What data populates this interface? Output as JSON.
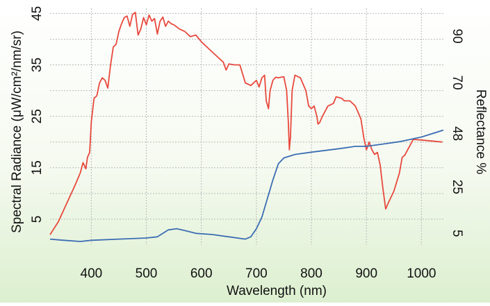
{
  "colors": {
    "radiance_series": "#e8483c",
    "reflectance_series": "#3b6db3",
    "grid": "#b8b8b8",
    "background_bottom": "#dcefcf"
  },
  "chart_data": {
    "type": "line",
    "xlabel": "Wavelength (nm)",
    "ylabel_left": "Spectral Radiance (μW/cm²/nm/sr)",
    "ylabel_right": "Reflectance %",
    "xlim": [
      325,
      1040
    ],
    "ylim_left": [
      0,
      46
    ],
    "ylim_right": [
      0,
      102
    ],
    "x_ticks": [
      400,
      500,
      600,
      700,
      800,
      900,
      1000
    ],
    "y_left_ticks": [
      5,
      15,
      25,
      35,
      45
    ],
    "y_right_ticks": [
      5,
      25,
      48,
      70,
      90
    ],
    "grid": true,
    "grid_y_values_left": [
      5,
      10,
      15,
      20,
      25,
      30,
      35,
      40,
      45
    ],
    "series": [
      {
        "axis": "left",
        "points": [
          [
            325,
            2
          ],
          [
            340,
            4.5
          ],
          [
            355,
            8
          ],
          [
            370,
            11.5
          ],
          [
            380,
            14
          ],
          [
            385,
            16
          ],
          [
            390,
            14.8
          ],
          [
            393,
            17
          ],
          [
            397,
            18
          ],
          [
            400,
            24
          ],
          [
            405,
            28.5
          ],
          [
            410,
            29
          ],
          [
            415,
            31.5
          ],
          [
            420,
            32.5
          ],
          [
            425,
            32
          ],
          [
            430,
            30.5
          ],
          [
            435,
            35
          ],
          [
            440,
            38.5
          ],
          [
            445,
            39
          ],
          [
            450,
            41.5
          ],
          [
            455,
            43
          ],
          [
            460,
            44.2
          ],
          [
            465,
            44.5
          ],
          [
            470,
            42.5
          ],
          [
            475,
            44.8
          ],
          [
            480,
            45.2
          ],
          [
            485,
            40.8
          ],
          [
            490,
            42
          ],
          [
            495,
            44.2
          ],
          [
            500,
            42.8
          ],
          [
            505,
            44.7
          ],
          [
            510,
            43.5
          ],
          [
            515,
            44
          ],
          [
            520,
            41
          ],
          [
            525,
            43.5
          ],
          [
            530,
            44.3
          ],
          [
            535,
            42.5
          ],
          [
            540,
            43.5
          ],
          [
            545,
            43
          ],
          [
            550,
            42.8
          ],
          [
            560,
            42
          ],
          [
            570,
            41.5
          ],
          [
            580,
            40.5
          ],
          [
            590,
            40.8
          ],
          [
            600,
            39.5
          ],
          [
            610,
            38.5
          ],
          [
            620,
            37.5
          ],
          [
            630,
            36.5
          ],
          [
            640,
            35.5
          ],
          [
            645,
            34
          ],
          [
            650,
            35.2
          ],
          [
            660,
            35
          ],
          [
            670,
            35
          ],
          [
            680,
            31.5
          ],
          [
            690,
            31
          ],
          [
            700,
            32
          ],
          [
            705,
            30.7
          ],
          [
            710,
            32.5
          ],
          [
            715,
            33
          ],
          [
            718,
            28
          ],
          [
            722,
            26.5
          ],
          [
            725,
            30
          ],
          [
            730,
            32
          ],
          [
            735,
            32.6
          ],
          [
            740,
            32.5
          ],
          [
            745,
            32.6
          ],
          [
            750,
            32.7
          ],
          [
            755,
            30
          ],
          [
            758,
            24
          ],
          [
            760,
            18.5
          ],
          [
            762,
            21
          ],
          [
            765,
            30
          ],
          [
            770,
            33
          ],
          [
            780,
            32.5
          ],
          [
            790,
            30
          ],
          [
            795,
            27
          ],
          [
            800,
            26.5
          ],
          [
            805,
            27
          ],
          [
            810,
            25
          ],
          [
            812,
            23.5
          ],
          [
            815,
            23.8
          ],
          [
            820,
            25
          ],
          [
            830,
            27
          ],
          [
            840,
            27.5
          ],
          [
            845,
            28.8
          ],
          [
            855,
            28.5
          ],
          [
            860,
            28
          ],
          [
            870,
            28
          ],
          [
            880,
            27
          ],
          [
            890,
            24.5
          ],
          [
            895,
            21
          ],
          [
            900,
            18.5
          ],
          [
            905,
            20
          ],
          [
            910,
            18.5
          ],
          [
            915,
            17.6
          ],
          [
            920,
            18
          ],
          [
            925,
            15.5
          ],
          [
            930,
            11
          ],
          [
            935,
            7
          ],
          [
            940,
            8.2
          ],
          [
            950,
            10.5
          ],
          [
            960,
            14
          ],
          [
            965,
            17
          ],
          [
            970,
            17.5
          ],
          [
            975,
            18.5
          ],
          [
            980,
            19.5
          ],
          [
            985,
            20.5
          ],
          [
            1000,
            20.4
          ],
          [
            1020,
            20.2
          ],
          [
            1038,
            20
          ]
        ]
      },
      {
        "axis": "right",
        "points": [
          [
            325,
            2.5
          ],
          [
            350,
            2
          ],
          [
            380,
            1.5
          ],
          [
            400,
            2
          ],
          [
            450,
            2.5
          ],
          [
            500,
            3
          ],
          [
            520,
            3.5
          ],
          [
            530,
            5
          ],
          [
            540,
            6.5
          ],
          [
            555,
            7
          ],
          [
            570,
            6.2
          ],
          [
            590,
            5
          ],
          [
            620,
            4.5
          ],
          [
            650,
            3.5
          ],
          [
            680,
            2.5
          ],
          [
            690,
            3.5
          ],
          [
            700,
            7
          ],
          [
            710,
            12
          ],
          [
            720,
            20
          ],
          [
            730,
            28
          ],
          [
            740,
            35
          ],
          [
            750,
            37.5
          ],
          [
            770,
            39
          ],
          [
            800,
            40
          ],
          [
            850,
            41.5
          ],
          [
            880,
            42.5
          ],
          [
            900,
            42.5
          ],
          [
            930,
            43.5
          ],
          [
            960,
            44.5
          ],
          [
            1000,
            46.5
          ],
          [
            1040,
            49.5
          ]
        ]
      }
    ]
  }
}
